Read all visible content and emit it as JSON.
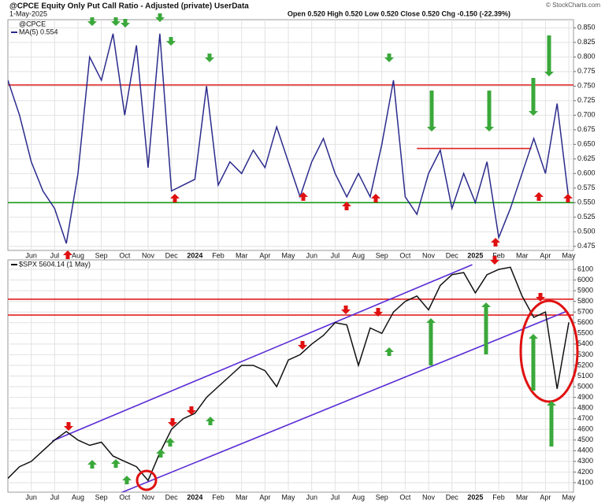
{
  "header": {
    "title": "@CPCE Equity Only Put Call Ratio - Adjusted (private) UserData",
    "date": "1-May-2025",
    "quote": "Open 0.520 High 0.520 Low 0.520 Close 0.520 Chg -0.150 (-22.39%)",
    "credit": "© StockCharts.com"
  },
  "chart_data": [
    {
      "type": "line",
      "symbol": "@CPCE",
      "x": [
        -1.0,
        -0.5,
        0,
        0.5,
        1.0,
        1.5,
        2.0,
        2.5,
        3.0,
        3.5,
        4.0,
        4.5,
        5.0,
        5.5,
        6.0,
        6.5,
        7.0,
        7.5,
        8.0,
        8.5,
        9.0,
        9.5,
        10.0,
        10.5,
        11.0,
        11.5,
        12.0,
        12.5,
        13.0,
        13.5,
        14.0,
        14.5,
        15.0,
        15.5,
        16.0,
        16.5,
        17.0,
        17.5,
        18.0,
        18.5,
        19.0,
        19.5,
        20.0,
        20.5,
        21.0,
        21.5,
        22.0,
        22.5,
        23.0
      ],
      "series": [
        {
          "name": "MA(5) 0.554",
          "color": "#2b2b8c",
          "values": [
            0.76,
            0.7,
            0.62,
            0.57,
            0.54,
            0.48,
            0.6,
            0.8,
            0.76,
            0.84,
            0.7,
            0.82,
            0.61,
            0.84,
            0.57,
            0.58,
            0.59,
            0.75,
            0.58,
            0.62,
            0.6,
            0.64,
            0.61,
            0.68,
            0.62,
            0.56,
            0.62,
            0.66,
            0.6,
            0.56,
            0.6,
            0.56,
            0.65,
            0.76,
            0.56,
            0.53,
            0.6,
            0.64,
            0.54,
            0.6,
            0.55,
            0.62,
            0.49,
            0.54,
            0.6,
            0.66,
            0.6,
            0.72,
            0.554
          ]
        }
      ],
      "xlim": [
        -1.0,
        23.2
      ],
      "xticks": [
        {
          "value": 0,
          "label": "Jun"
        },
        {
          "value": 1,
          "label": "Jul"
        },
        {
          "value": 2,
          "label": "Aug"
        },
        {
          "value": 3,
          "label": "Sep"
        },
        {
          "value": 4,
          "label": "Oct"
        },
        {
          "value": 5,
          "label": "Nov"
        },
        {
          "value": 6,
          "label": "Dec"
        },
        {
          "value": 7,
          "label": "2024"
        },
        {
          "value": 8,
          "label": "Feb"
        },
        {
          "value": 9,
          "label": "Mar"
        },
        {
          "value": 10,
          "label": "Apr"
        },
        {
          "value": 11,
          "label": "May"
        },
        {
          "value": 12,
          "label": "Jun"
        },
        {
          "value": 13,
          "label": "Jul"
        },
        {
          "value": 14,
          "label": "Aug"
        },
        {
          "value": 15,
          "label": "Sep"
        },
        {
          "value": 16,
          "label": "Oct"
        },
        {
          "value": 17,
          "label": "Nov"
        },
        {
          "value": 18,
          "label": "Dec"
        },
        {
          "value": 19,
          "label": "2025"
        },
        {
          "value": 20,
          "label": "Feb"
        },
        {
          "value": 21,
          "label": "Mar"
        },
        {
          "value": 22,
          "label": "Apr"
        },
        {
          "value": 23,
          "label": "May"
        }
      ],
      "ylim": [
        0.468,
        0.864
      ],
      "yticks": [
        {
          "value": 0.475,
          "label": "0.475"
        },
        {
          "value": 0.5,
          "label": "0.500"
        },
        {
          "value": 0.525,
          "label": "0.525"
        },
        {
          "value": 0.55,
          "label": "0.550"
        },
        {
          "value": 0.575,
          "label": "0.575"
        },
        {
          "value": 0.6,
          "label": "0.600"
        },
        {
          "value": 0.625,
          "label": "0.625"
        },
        {
          "value": 0.65,
          "label": "0.650"
        },
        {
          "value": 0.675,
          "label": "0.675"
        },
        {
          "value": 0.7,
          "label": "0.700"
        },
        {
          "value": 0.725,
          "label": "0.725"
        },
        {
          "value": 0.75,
          "label": "0.750"
        },
        {
          "value": 0.775,
          "label": "0.775"
        },
        {
          "value": 0.8,
          "label": "0.800"
        },
        {
          "value": 0.825,
          "label": "0.825"
        },
        {
          "value": 0.85,
          "label": "0.850"
        }
      ],
      "grid": true,
      "hlines": [
        {
          "value": 0.752,
          "color": "#e02020"
        },
        {
          "value": 0.55,
          "color": "#1a9a1a"
        }
      ],
      "segments": [
        {
          "x": [
            16.5,
            21.4
          ],
          "values": [
            0.643,
            0.643
          ],
          "color": "#e02020"
        }
      ]
    },
    {
      "type": "line",
      "x": [
        -1.0,
        -0.5,
        0,
        0.5,
        1.0,
        1.5,
        2.0,
        2.5,
        3.0,
        3.5,
        4.0,
        4.5,
        5.0,
        5.5,
        6.0,
        6.5,
        7.0,
        7.5,
        8.0,
        8.5,
        9.0,
        9.5,
        10.0,
        10.5,
        11.0,
        11.5,
        12.0,
        12.5,
        13.0,
        13.5,
        14.0,
        14.5,
        15.0,
        15.5,
        16.0,
        16.5,
        17.0,
        17.5,
        18.0,
        18.5,
        19.0,
        19.5,
        20.0,
        20.5,
        21.0,
        21.5,
        22.0,
        22.5,
        23.0
      ],
      "series": [
        {
          "name": "$SPX 5604.14 (1 May)",
          "color": "#111111",
          "values": [
            4140,
            4250,
            4300,
            4400,
            4500,
            4580,
            4500,
            4450,
            4480,
            4350,
            4300,
            4250,
            4120,
            4380,
            4600,
            4700,
            4750,
            4900,
            5000,
            5100,
            5200,
            5200,
            5150,
            5000,
            5250,
            5300,
            5400,
            5480,
            5600,
            5580,
            5200,
            5550,
            5500,
            5700,
            5800,
            5850,
            5720,
            5950,
            6050,
            6070,
            5880,
            6050,
            6100,
            6120,
            5850,
            5650,
            5700,
            4980,
            5604
          ]
        }
      ],
      "xlim": [
        -1.0,
        23.2
      ],
      "xticks": [
        {
          "value": 0,
          "label": "Jun"
        },
        {
          "value": 1,
          "label": "Jul"
        },
        {
          "value": 2,
          "label": "Aug"
        },
        {
          "value": 3,
          "label": "Sep"
        },
        {
          "value": 4,
          "label": "Oct"
        },
        {
          "value": 5,
          "label": "Nov"
        },
        {
          "value": 6,
          "label": "Dec"
        },
        {
          "value": 7,
          "label": "2024"
        },
        {
          "value": 8,
          "label": "Feb"
        },
        {
          "value": 9,
          "label": "Mar"
        },
        {
          "value": 10,
          "label": "Apr"
        },
        {
          "value": 11,
          "label": "May"
        },
        {
          "value": 12,
          "label": "Jun"
        },
        {
          "value": 13,
          "label": "Jul"
        },
        {
          "value": 14,
          "label": "Aug"
        },
        {
          "value": 15,
          "label": "Sep"
        },
        {
          "value": 16,
          "label": "Oct"
        },
        {
          "value": 17,
          "label": "Nov"
        },
        {
          "value": 18,
          "label": "Dec"
        },
        {
          "value": 19,
          "label": "2025"
        },
        {
          "value": 20,
          "label": "Feb"
        },
        {
          "value": 21,
          "label": "Mar"
        },
        {
          "value": 22,
          "label": "Apr"
        },
        {
          "value": 23,
          "label": "May"
        }
      ],
      "ylim": [
        4011,
        6189
      ],
      "yticks": [
        4100,
        4200,
        4300,
        4400,
        4500,
        4600,
        4700,
        4800,
        4900,
        5000,
        5100,
        5200,
        5300,
        5400,
        5500,
        5600,
        5700,
        5800,
        5900,
        6000,
        6100
      ],
      "grid": true,
      "hlines": [
        {
          "value": 5820,
          "color": "#e02020"
        },
        {
          "value": 5672,
          "color": "#e02020"
        }
      ],
      "segments": [
        {
          "x": [
            0.9,
            18.87
          ],
          "values": [
            4491,
            6144
          ],
          "color": "#5a2bd6"
        },
        {
          "x": [
            3.33,
            22.93
          ],
          "values": [
            3960,
            5709
          ],
          "color": "#5a2bd6"
        }
      ]
    }
  ]
}
